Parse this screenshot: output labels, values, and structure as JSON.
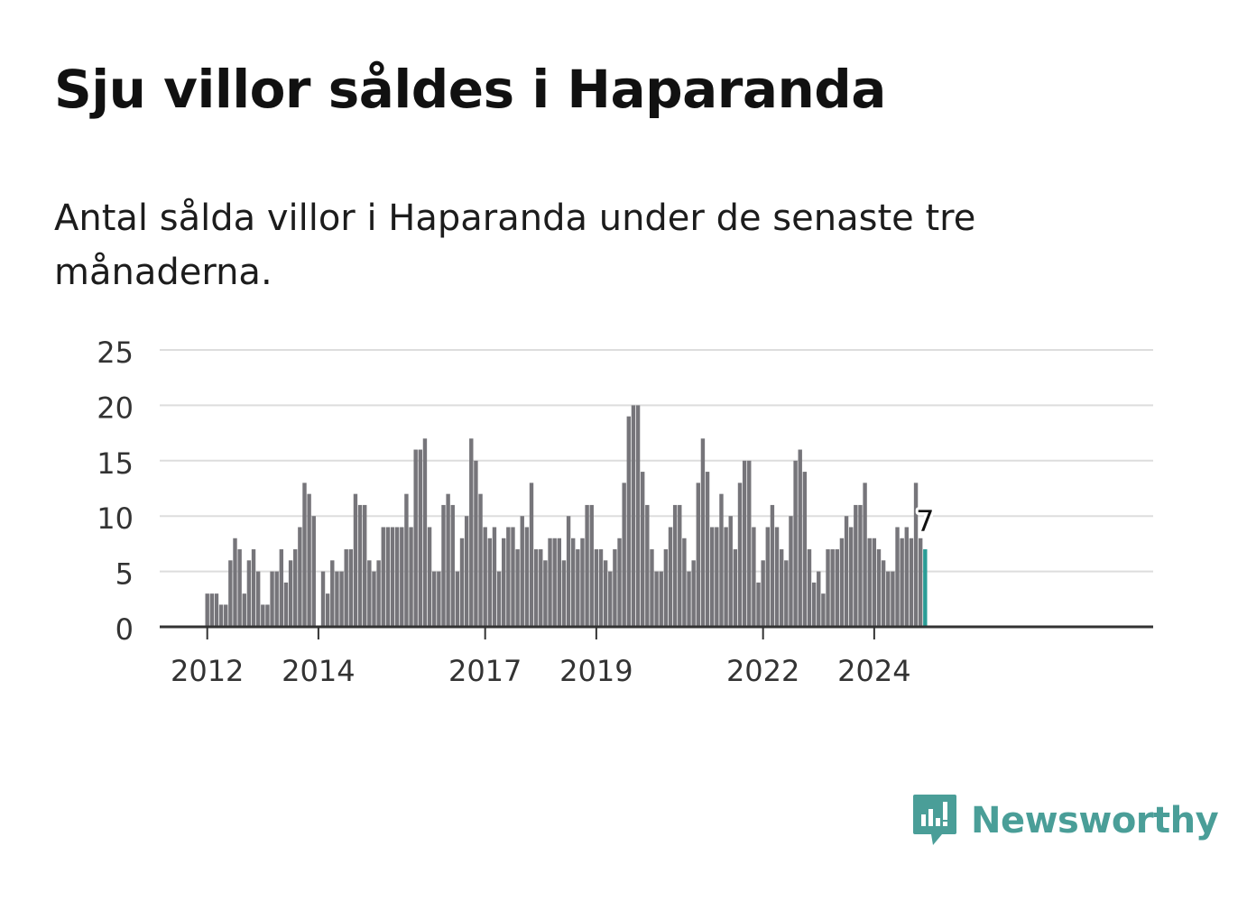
{
  "title": "Sju villor såldes i Haparanda",
  "subtitle": "Antal sålda villor i Haparanda under de senaste tre månaderna.",
  "brand": {
    "name": "Newsworthy",
    "icon": "newsworthy-logo-icon",
    "color": "#4a9e98"
  },
  "colors": {
    "bar": "#76757a",
    "highlight": "#2a9d96",
    "grid": "#dddddd",
    "axis": "#333333"
  },
  "chart_data": {
    "type": "bar",
    "start_month": "2012-01",
    "x_tick_labels": [
      "2012",
      "2014",
      "2017",
      "2019",
      "2022",
      "2024"
    ],
    "y_ticks": [
      0,
      5,
      10,
      15,
      20,
      25
    ],
    "ylim": [
      0,
      25
    ],
    "grid": true,
    "values": [
      3,
      3,
      3,
      2,
      2,
      6,
      8,
      7,
      3,
      6,
      7,
      5,
      2,
      2,
      5,
      5,
      7,
      4,
      6,
      7,
      9,
      13,
      12,
      10,
      0,
      5,
      3,
      6,
      5,
      5,
      7,
      7,
      12,
      11,
      11,
      6,
      5,
      6,
      9,
      9,
      9,
      9,
      9,
      12,
      9,
      16,
      16,
      17,
      9,
      5,
      5,
      11,
      12,
      11,
      5,
      8,
      10,
      17,
      15,
      12,
      9,
      8,
      9,
      5,
      8,
      9,
      9,
      7,
      10,
      9,
      13,
      7,
      7,
      6,
      8,
      8,
      8,
      6,
      10,
      8,
      7,
      8,
      11,
      11,
      7,
      7,
      6,
      5,
      7,
      8,
      13,
      19,
      20,
      20,
      14,
      11,
      7,
      5,
      5,
      7,
      9,
      11,
      11,
      8,
      5,
      6,
      13,
      17,
      14,
      9,
      9,
      12,
      9,
      10,
      7,
      13,
      15,
      15,
      9,
      4,
      6,
      9,
      11,
      9,
      7,
      6,
      10,
      15,
      16,
      14,
      7,
      4,
      5,
      3,
      7,
      7,
      7,
      8,
      10,
      9,
      11,
      11,
      13,
      8,
      8,
      7,
      6,
      5,
      5,
      9,
      8,
      9,
      8,
      13,
      8,
      7
    ],
    "highlight_last": true,
    "last_label": "7"
  }
}
